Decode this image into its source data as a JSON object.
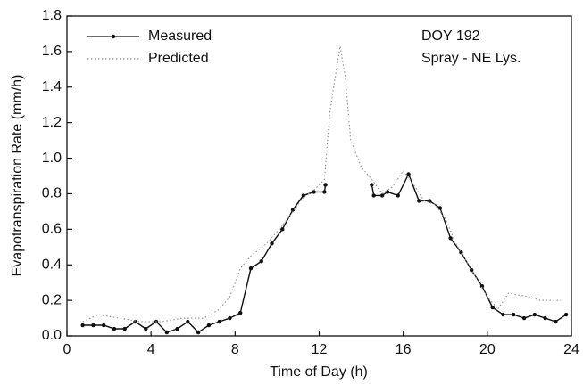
{
  "chart_data": {
    "type": "line",
    "x_label": "Time of Day (h)",
    "y_label": "Evapotranspiration Rate (mm/h)",
    "annotations": [
      "DOY 192",
      "Spray - NE Lys."
    ],
    "legend": "upper left",
    "xlim": [
      0,
      24
    ],
    "xticks": [
      0,
      4,
      8,
      12,
      16,
      20,
      24
    ],
    "ylim": [
      0,
      1.8
    ],
    "yticks": [
      {
        "value": 0,
        "label": "0.0"
      },
      0.2,
      0.4,
      0.6,
      0.8,
      {
        "value": 1,
        "label": "1.0"
      },
      1.2,
      1.4,
      1.6,
      1.8
    ],
    "series": [
      {
        "name": "Measured",
        "color": "#111111",
        "style": "solid",
        "markers": true,
        "x": [
          0.75,
          1.25,
          1.75,
          2.25,
          2.75,
          3.25,
          3.75,
          4.25,
          4.75,
          5.25,
          5.75,
          6.25,
          6.75,
          7.25,
          7.75,
          8.25,
          8.75,
          9.25,
          9.75,
          10.25,
          10.75,
          11.25,
          11.75,
          12.25,
          12.3,
          null,
          14.5,
          14.6,
          15.0,
          15.25,
          15.75,
          16.25,
          16.75,
          17.25,
          17.75,
          18.25,
          18.75,
          19.25,
          19.75,
          20.25,
          20.75,
          21.25,
          21.75,
          22.25,
          22.75,
          23.25,
          23.75
        ],
        "values": [
          0.06,
          0.06,
          0.06,
          0.04,
          0.04,
          0.08,
          0.04,
          0.08,
          0.02,
          0.04,
          0.08,
          0.02,
          0.06,
          0.08,
          0.1,
          0.13,
          0.38,
          0.42,
          0.52,
          0.6,
          0.71,
          0.79,
          0.81,
          0.81,
          0.85,
          null,
          0.85,
          0.79,
          0.79,
          0.81,
          0.79,
          0.91,
          0.76,
          0.76,
          0.72,
          0.55,
          0.47,
          0.37,
          0.28,
          0.16,
          0.12,
          0.12,
          0.1,
          0.12,
          0.1,
          0.08,
          0.12
        ]
      },
      {
        "name": "Predicted",
        "color": "#999999",
        "style": "dotted",
        "markers": false,
        "x": [
          0.75,
          1.5,
          2.5,
          3.5,
          4.5,
          5.5,
          6.5,
          7.25,
          7.75,
          8.25,
          8.75,
          9.5,
          10.25,
          10.75,
          11.25,
          11.75,
          12.25,
          12.5,
          12.75,
          13.0,
          13.25,
          13.5,
          14.0,
          14.5,
          15.0,
          15.5,
          16.0,
          16.5,
          17.0,
          17.5,
          18.0,
          18.5,
          19.0,
          19.5,
          20.0,
          20.5,
          21.0,
          21.5,
          22.0,
          22.5,
          23.0,
          23.5
        ],
        "values": [
          0.08,
          0.12,
          0.1,
          0.08,
          0.08,
          0.1,
          0.1,
          0.15,
          0.22,
          0.38,
          0.45,
          0.52,
          0.62,
          0.7,
          0.78,
          0.82,
          0.88,
          1.25,
          1.45,
          1.63,
          1.45,
          1.1,
          0.95,
          0.88,
          0.8,
          0.84,
          0.93,
          0.85,
          0.76,
          0.74,
          0.66,
          0.52,
          0.42,
          0.32,
          0.22,
          0.15,
          0.24,
          0.23,
          0.22,
          0.2,
          0.2,
          0.2
        ]
      }
    ]
  }
}
